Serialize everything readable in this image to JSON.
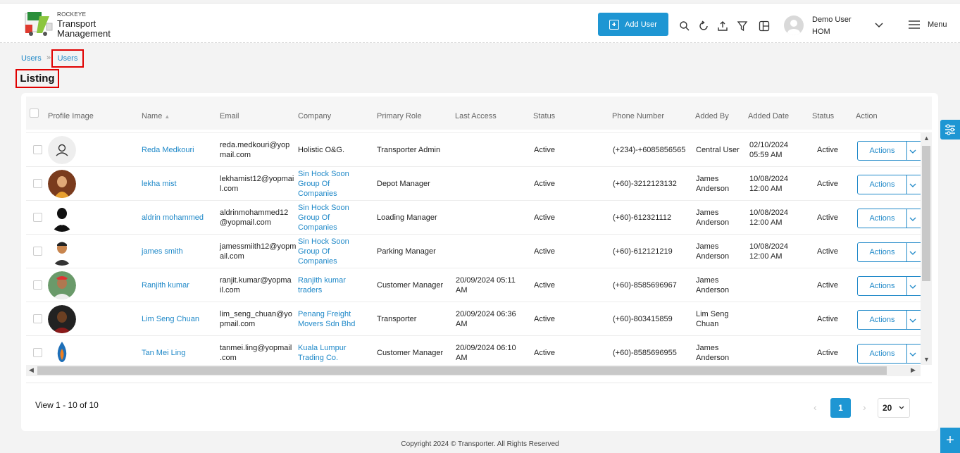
{
  "header": {
    "brand_small": "ROCKEYE",
    "brand_line1": "Transport",
    "brand_line2": "Management",
    "add_user_label": "Add User",
    "user_name": "Demo User",
    "user_role": "HOM",
    "menu_label": "Menu",
    "icons": [
      "search-icon",
      "refresh-icon",
      "upload-icon",
      "filter-icon",
      "columns-icon"
    ]
  },
  "breadcrumb": {
    "item1": "Users",
    "item2": "Users"
  },
  "page_title": "Listing",
  "table": {
    "columns": [
      "Profile Image",
      "Name",
      "Email",
      "Company",
      "Primary Role",
      "Last Access",
      "Status",
      "Phone Number",
      "Added By",
      "Added Date",
      "Status",
      "Action"
    ],
    "action_label": "Actions",
    "rows": [
      {
        "name": "Reda Medkouri",
        "email1": "reda.medkouri@yop",
        "email2": "mail.com",
        "company": [
          "Holistic O&G."
        ],
        "company_link": false,
        "role": "Transporter Admin",
        "last1": "",
        "last2": "",
        "status": "Active",
        "phone": "(+234)-+6085856565",
        "by1": "Central User",
        "by2": "",
        "date1": "02/10/2024",
        "date2": "05:59 AM",
        "status2": "Active"
      },
      {
        "name": "lekha mist",
        "email1": "lekhamist12@yopmai",
        "email2": "l.com",
        "company": [
          "Sin Hock Soon",
          "Group Of",
          "Companies"
        ],
        "company_link": true,
        "role": "Depot Manager",
        "last1": "",
        "last2": "",
        "status": "Active",
        "phone": "(+60)-3212123132",
        "by1": "James",
        "by2": "Anderson",
        "date1": "10/08/2024",
        "date2": "12:00 AM",
        "status2": "Active"
      },
      {
        "name": "aldrin mohammed",
        "email1": "aldrinmohammed12",
        "email2": "@yopmail.com",
        "company": [
          "Sin Hock Soon",
          "Group Of",
          "Companies"
        ],
        "company_link": true,
        "role": "Loading Manager",
        "last1": "",
        "last2": "",
        "status": "Active",
        "phone": "(+60)-612321112",
        "by1": "James",
        "by2": "Anderson",
        "date1": "10/08/2024",
        "date2": "12:00 AM",
        "status2": "Active"
      },
      {
        "name": "james smith",
        "email1": "jamessmiith12@yopm",
        "email2": "ail.com",
        "company": [
          "Sin Hock Soon",
          "Group Of",
          "Companies"
        ],
        "company_link": true,
        "role": "Parking Manager",
        "last1": "",
        "last2": "",
        "status": "Active",
        "phone": "(+60)-612121219",
        "by1": "James",
        "by2": "Anderson",
        "date1": "10/08/2024",
        "date2": "12:00 AM",
        "status2": "Active"
      },
      {
        "name": "Ranjith kumar",
        "email1": "ranjit.kumar@yopma",
        "email2": "il.com",
        "company": [
          "Ranjith kumar",
          "traders"
        ],
        "company_link": true,
        "role": "Customer Manager",
        "last1": "20/09/2024 05:11",
        "last2": "AM",
        "status": "Active",
        "phone": "(+60)-8585696967",
        "by1": "James",
        "by2": "Anderson",
        "date1": "",
        "date2": "",
        "status2": "Active"
      },
      {
        "name": "Lim Seng Chuan",
        "email1": "lim_seng_chuan@yo",
        "email2": "pmail.com",
        "company": [
          "Penang Freight",
          "Movers Sdn Bhd"
        ],
        "company_link": true,
        "role": "Transporter",
        "last1": "20/09/2024 06:36",
        "last2": "AM",
        "status": "Active",
        "phone": "(+60)-803415859",
        "by1": "Lim Seng",
        "by2": "Chuan",
        "date1": "",
        "date2": "",
        "status2": "Active"
      },
      {
        "name": "Tan Mei Ling",
        "email1": "tanmei.ling@yopmail",
        "email2": ".com",
        "company": [
          "Kuala Lumpur",
          "Trading Co."
        ],
        "company_link": true,
        "role": "Customer Manager",
        "last1": "20/09/2024 06:10",
        "last2": "AM",
        "status": "Active",
        "phone": "(+60)-8585696955",
        "by1": "James",
        "by2": "Anderson",
        "date1": "",
        "date2": "",
        "status2": "Active"
      }
    ]
  },
  "pagination": {
    "view_text": "View 1 - 10 of 10",
    "current_page": "1",
    "page_size": "20"
  },
  "copyright": "Copyright 2024 © Transporter. All Rights Reserved",
  "colors": {
    "accent": "#1e96d3",
    "link": "#1e88c8",
    "highlight": "#e00000"
  }
}
